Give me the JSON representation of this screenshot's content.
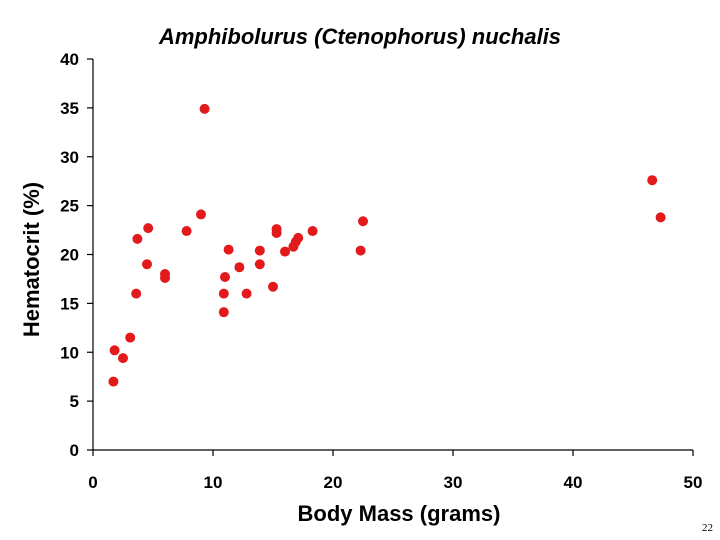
{
  "page_number": "22",
  "chart_data": {
    "type": "scatter",
    "title": "Amphibolurus (Ctenophorus) nuchalis",
    "xlabel": "Body Mass (grams)",
    "ylabel": "Hematocrit (%)",
    "xlim": [
      0,
      50
    ],
    "ylim": [
      0,
      40
    ],
    "x_ticks": [
      "0",
      "10",
      "20",
      "30",
      "40",
      "50"
    ],
    "y_ticks": [
      "0",
      "5",
      "10",
      "15",
      "20",
      "25",
      "30",
      "35",
      "40"
    ],
    "grid": false,
    "legend": "none",
    "marker_color": "#e31a1c",
    "series": [
      {
        "points": [
          [
            1.7,
            7.0
          ],
          [
            1.8,
            10.2
          ],
          [
            2.5,
            9.4
          ],
          [
            3.1,
            11.5
          ],
          [
            3.6,
            16.0
          ],
          [
            3.7,
            21.6
          ],
          [
            4.5,
            19.0
          ],
          [
            4.6,
            22.7
          ],
          [
            6.0,
            18.0
          ],
          [
            6.0,
            17.6
          ],
          [
            7.8,
            22.4
          ],
          [
            9.0,
            24.1
          ],
          [
            9.3,
            34.9
          ],
          [
            10.9,
            16.0
          ],
          [
            11.0,
            17.7
          ],
          [
            10.9,
            14.1
          ],
          [
            11.3,
            20.5
          ],
          [
            12.2,
            18.7
          ],
          [
            12.8,
            16.0
          ],
          [
            13.9,
            20.4
          ],
          [
            13.9,
            19.0
          ],
          [
            15.0,
            16.7
          ],
          [
            15.3,
            22.6
          ],
          [
            15.3,
            22.2
          ],
          [
            16.0,
            20.3
          ],
          [
            16.7,
            20.8
          ],
          [
            16.9,
            21.3
          ],
          [
            17.1,
            21.7
          ],
          [
            18.3,
            22.4
          ],
          [
            22.3,
            20.4
          ],
          [
            22.5,
            23.4
          ],
          [
            46.6,
            27.6
          ],
          [
            47.3,
            23.8
          ]
        ]
      }
    ]
  }
}
